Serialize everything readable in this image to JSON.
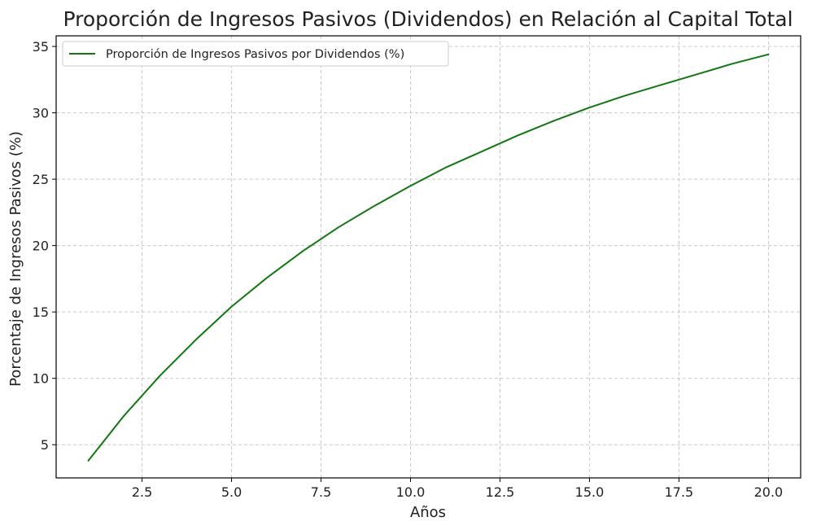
{
  "chart_data": {
    "type": "line",
    "title": "Proporción de Ingresos Pasivos (Dividendos) en Relación al Capital Total",
    "xlabel": "Años",
    "ylabel": "Porcentaje de Ingresos Pasivos (%)",
    "xlim": [
      0.1,
      20.9
    ],
    "ylim": [
      2.5,
      35.8
    ],
    "xticks": [
      2.5,
      5.0,
      7.5,
      10.0,
      12.5,
      15.0,
      17.5,
      20.0
    ],
    "xtick_labels": [
      "2.5",
      "5.0",
      "7.5",
      "10.0",
      "12.5",
      "15.0",
      "17.5",
      "20.0"
    ],
    "yticks": [
      5,
      10,
      15,
      20,
      25,
      30,
      35
    ],
    "ytick_labels": [
      "5",
      "10",
      "15",
      "20",
      "25",
      "30",
      "35"
    ],
    "grid": true,
    "legend_position": "top-left",
    "series": [
      {
        "name": "Proporción de Ingresos Pasivos por Dividendos (%)",
        "color": "#117711",
        "x": [
          1,
          2,
          3,
          4,
          5,
          6,
          7,
          8,
          9,
          10,
          11,
          12,
          13,
          14,
          15,
          16,
          17,
          18,
          19,
          20
        ],
        "values": [
          3.8,
          7.2,
          10.2,
          12.9,
          15.4,
          17.6,
          19.6,
          21.4,
          23.0,
          24.5,
          25.9,
          27.1,
          28.3,
          29.4,
          30.4,
          31.3,
          32.1,
          32.9,
          33.7,
          34.4
        ]
      }
    ]
  }
}
